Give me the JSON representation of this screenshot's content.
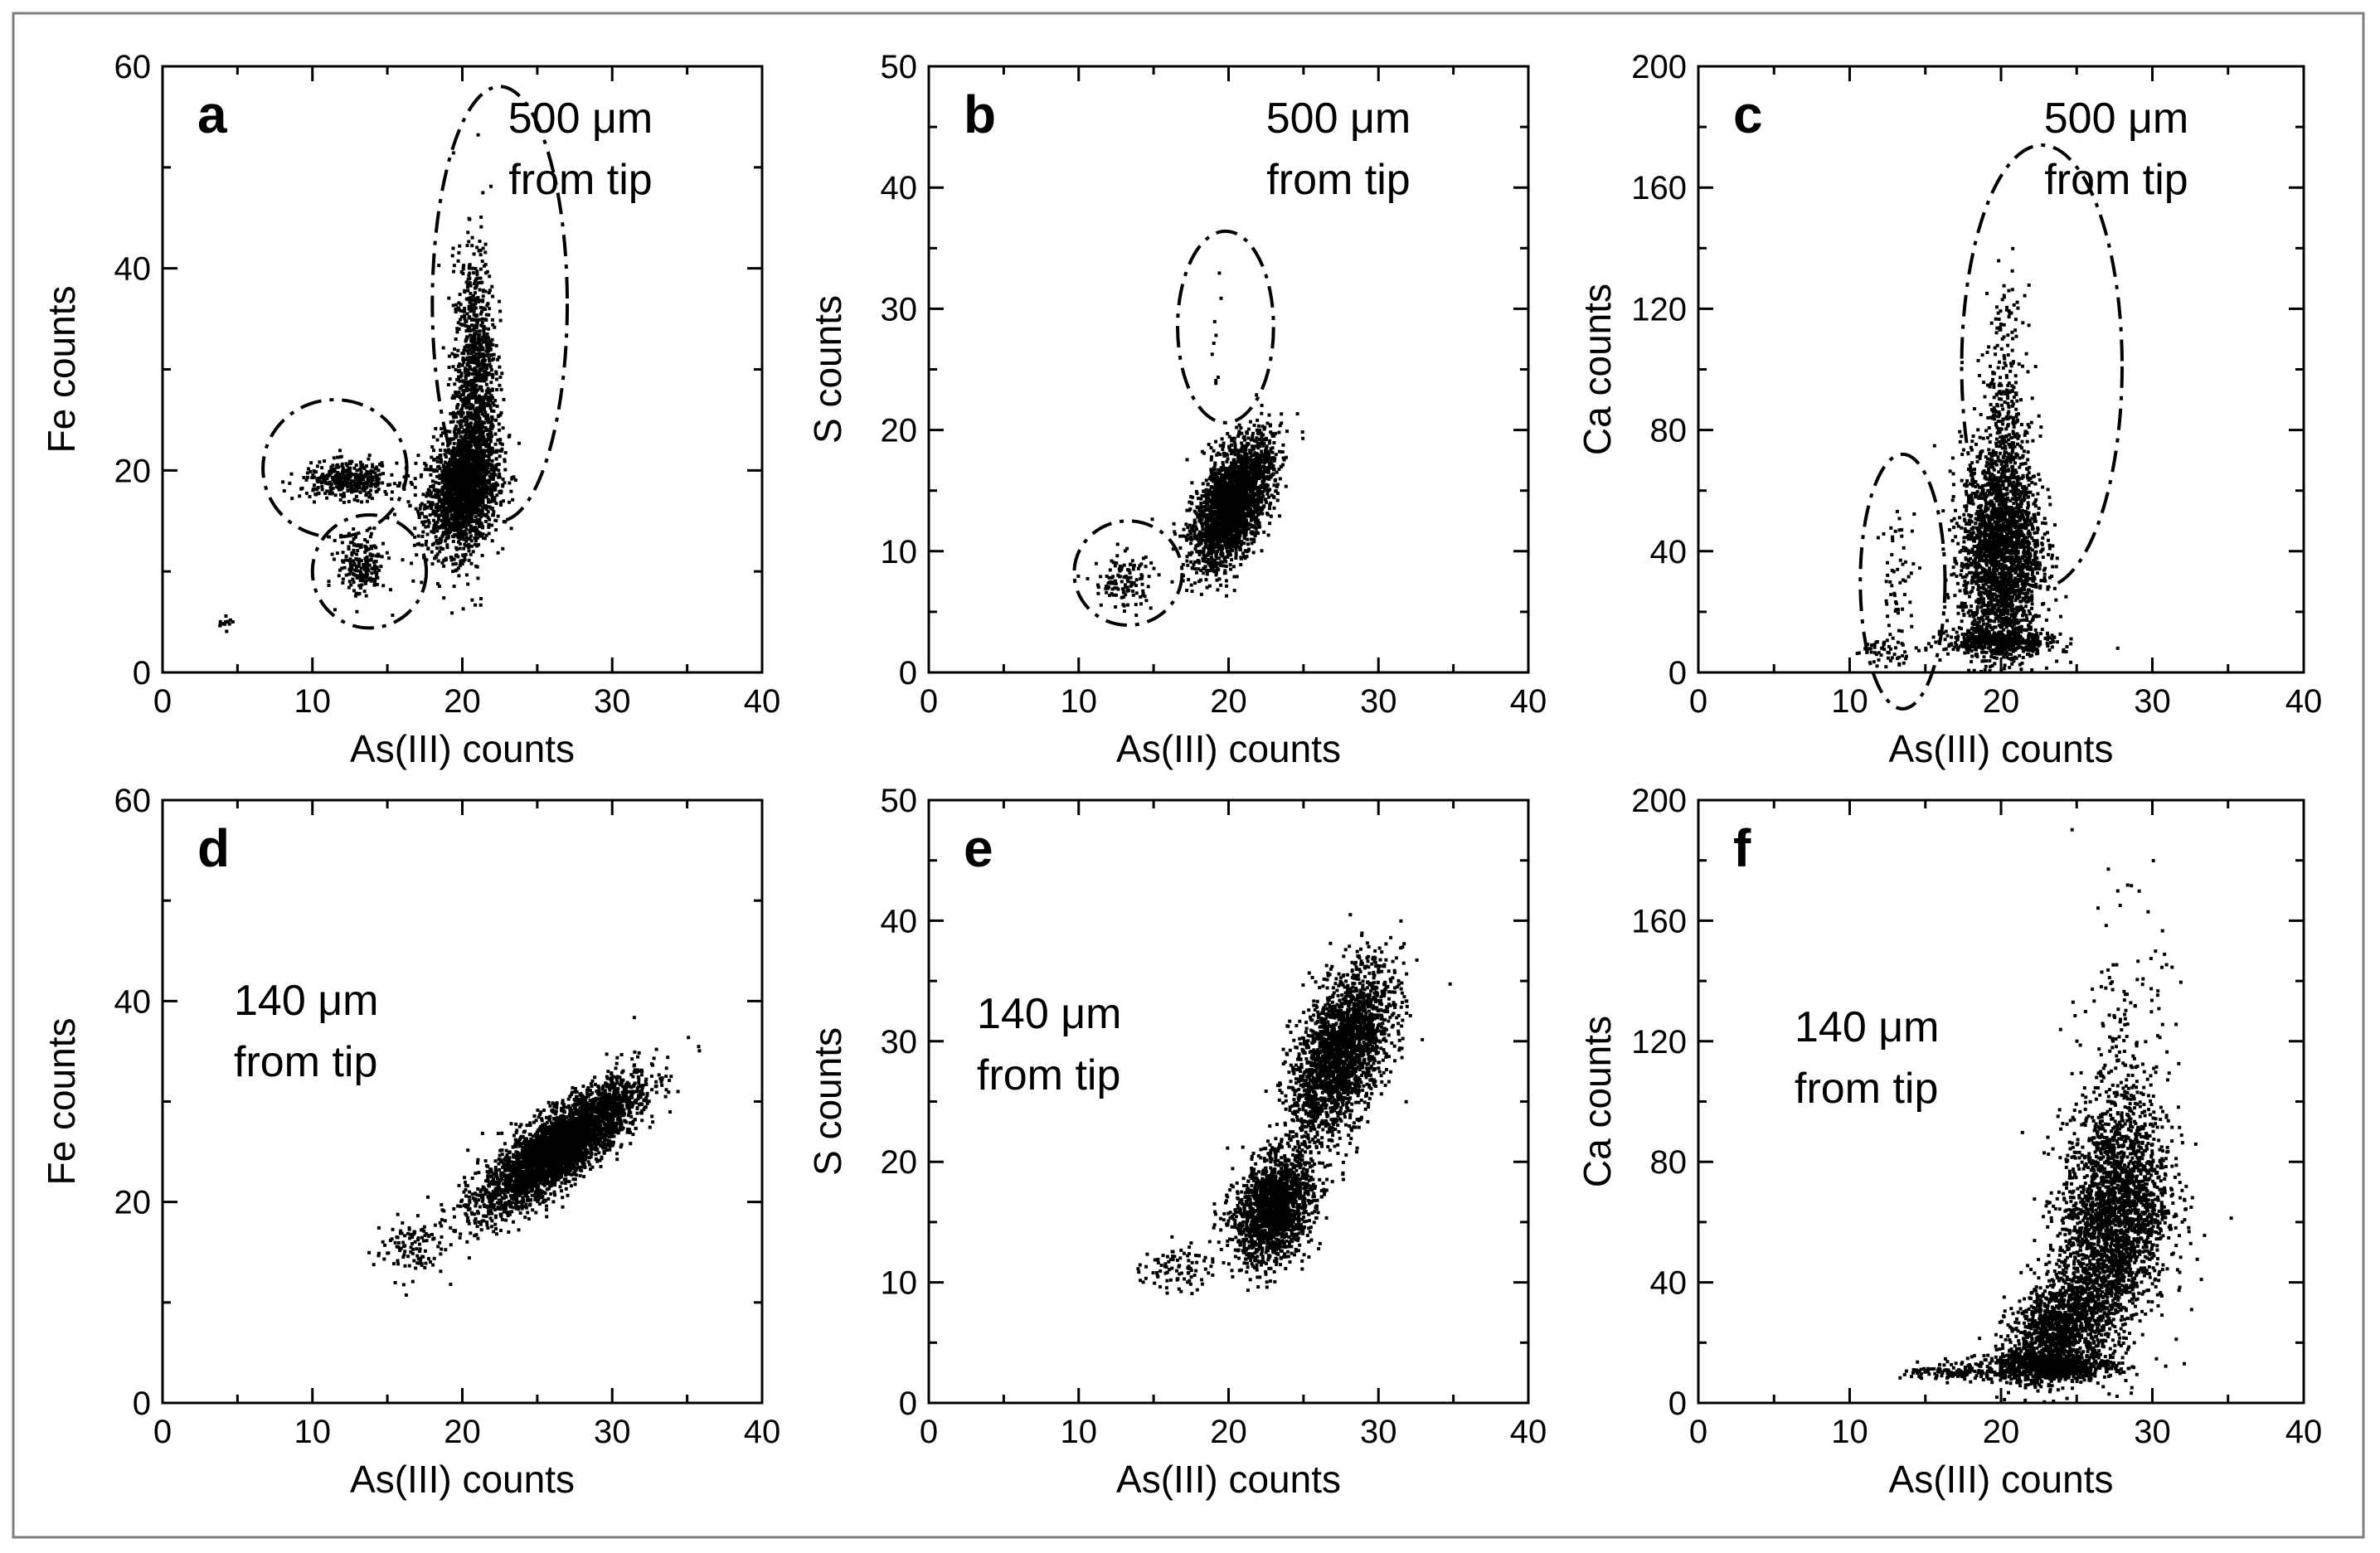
{
  "chart_data": [
    {
      "type": "scatter",
      "letter": "a",
      "annotation": [
        "500 μm",
        "from tip"
      ],
      "xlabel": "As(III) counts",
      "ylabel": "Fe counts",
      "xlim": [
        0,
        40
      ],
      "ylim": [
        0,
        60
      ],
      "xticks": [
        "0",
        "10",
        "20",
        "30",
        "40"
      ],
      "yticks": [
        "0",
        "20",
        "40",
        "60"
      ],
      "clusters": [
        {
          "cx": 20,
          "cy": 18,
          "sx": 1.2,
          "sy": 3.0,
          "rho": 0.25,
          "n": 1700
        },
        {
          "cx": 20.8,
          "cy": 28,
          "sx": 0.7,
          "sy": 7.0,
          "rho": 0.1,
          "n": 1100
        },
        {
          "cx": 12.5,
          "cy": 19,
          "sx": 1.6,
          "sy": 0.9,
          "rho": 0,
          "n": 380
        },
        {
          "cx": 13.3,
          "cy": 10.5,
          "sx": 0.8,
          "sy": 1.6,
          "rho": 0,
          "n": 200
        },
        {
          "cx": 4.2,
          "cy": 4.8,
          "sx": 0.25,
          "sy": 0.3,
          "rho": 0,
          "n": 14
        }
      ],
      "ellipses": [
        {
          "cx": 22.5,
          "cy": 36.5,
          "rx": 4.5,
          "ry": 21.5
        },
        {
          "cx": 11.5,
          "cy": 20.2,
          "rx": 4.8,
          "ry": 6.8
        },
        {
          "cx": 13.8,
          "cy": 10,
          "rx": 3.8,
          "ry": 5.6
        }
      ]
    },
    {
      "type": "scatter",
      "letter": "b",
      "annotation": [
        "500 μm",
        "from tip"
      ],
      "xlabel": "As(III) counts",
      "ylabel": "S counts",
      "xlim": [
        0,
        40
      ],
      "ylim": [
        0,
        50
      ],
      "xticks": [
        "0",
        "10",
        "20",
        "30",
        "40"
      ],
      "yticks": [
        "0",
        "10",
        "20",
        "30",
        "40",
        "50"
      ],
      "clusters": [
        {
          "cx": 20.3,
          "cy": 14,
          "sx": 1.3,
          "sy": 2.6,
          "rho": 0.55,
          "n": 2400
        },
        {
          "cx": 13,
          "cy": 7.5,
          "sx": 1.0,
          "sy": 1.2,
          "rho": 0,
          "n": 120
        },
        {
          "cx": 19.2,
          "cy": 28,
          "sx": 0.25,
          "sy": 4.0,
          "rho": 0,
          "n": 10
        }
      ],
      "ellipses": [
        {
          "cx": 19.8,
          "cy": 28.5,
          "rx": 3.2,
          "ry": 7.9
        },
        {
          "cx": 13.3,
          "cy": 8.2,
          "rx": 3.6,
          "ry": 4.3
        }
      ]
    },
    {
      "type": "scatter",
      "letter": "c",
      "annotation": [
        "500 μm",
        "from tip"
      ],
      "xlabel": "As(III) counts",
      "ylabel": "Ca counts",
      "xlim": [
        0,
        40
      ],
      "ylim": [
        0,
        200
      ],
      "xticks": [
        "0",
        "10",
        "20",
        "30",
        "40"
      ],
      "yticks": [
        "0",
        "40",
        "80",
        "120",
        "160",
        "200"
      ],
      "clusters": [
        {
          "cx": 20,
          "cy": 40,
          "sx": 1.3,
          "sy": 18,
          "rho": 0.05,
          "n": 2300
        },
        {
          "cx": 20.2,
          "cy": 90,
          "sx": 0.7,
          "sy": 18,
          "rho": 0,
          "n": 250
        },
        {
          "cx": 20,
          "cy": 10,
          "sx": 1.8,
          "sy": 2.2,
          "rho": 0,
          "n": 450
        },
        {
          "cx": 13.2,
          "cy": 30,
          "sx": 0.6,
          "sy": 12,
          "rho": 0,
          "n": 60
        },
        {
          "cx": 12.5,
          "cy": 7,
          "sx": 1.1,
          "sy": 1.8,
          "rho": 0,
          "n": 50
        }
      ],
      "ellipses": [
        {
          "cx": 22.7,
          "cy": 101,
          "rx": 5.3,
          "ry": 73
        },
        {
          "cx": 13.5,
          "cy": 30,
          "rx": 2.8,
          "ry": 42
        }
      ]
    },
    {
      "type": "scatter",
      "letter": "d",
      "annotation": [
        "140 μm",
        "from tip"
      ],
      "xlabel": "As(III) counts",
      "ylabel": "Fe counts",
      "xlim": [
        0,
        40
      ],
      "ylim": [
        0,
        60
      ],
      "xticks": [
        "0",
        "10",
        "20",
        "30",
        "40"
      ],
      "yticks": [
        "0",
        "20",
        "40",
        "60"
      ],
      "clusters": [
        {
          "cx": 26.5,
          "cy": 25.5,
          "sx": 2.6,
          "sy": 3.2,
          "rho": 0.82,
          "n": 3600
        },
        {
          "cx": 16.5,
          "cy": 15.5,
          "sx": 1.2,
          "sy": 1.6,
          "rho": 0.1,
          "n": 110
        }
      ],
      "ellipses": []
    },
    {
      "type": "scatter",
      "letter": "e",
      "annotation": [
        "140 μm",
        "from tip"
      ],
      "xlabel": "As(III) counts",
      "ylabel": "S counts",
      "xlim": [
        0,
        40
      ],
      "ylim": [
        0,
        50
      ],
      "xticks": [
        "0",
        "10",
        "20",
        "30",
        "40"
      ],
      "yticks": [
        "0",
        "10",
        "20",
        "30",
        "40",
        "50"
      ],
      "clusters": [
        {
          "cx": 27.5,
          "cy": 29,
          "sx": 1.7,
          "sy": 3.6,
          "rho": 0.55,
          "n": 2200
        },
        {
          "cx": 23,
          "cy": 16,
          "sx": 1.3,
          "sy": 2.2,
          "rho": 0.3,
          "n": 1700
        },
        {
          "cx": 16.5,
          "cy": 11.2,
          "sx": 1.1,
          "sy": 1.0,
          "rho": 0,
          "n": 90
        }
      ],
      "ellipses": []
    },
    {
      "type": "scatter",
      "letter": "f",
      "annotation": [
        "140 μm",
        "from tip"
      ],
      "xlabel": "As(III) counts",
      "ylabel": "Ca counts",
      "xlim": [
        0,
        40
      ],
      "ylim": [
        0,
        200
      ],
      "xticks": [
        "0",
        "10",
        "20",
        "30",
        "40"
      ],
      "yticks": [
        "0",
        "40",
        "80",
        "120",
        "160",
        "200"
      ],
      "clusters": [
        {
          "cx": 27.5,
          "cy": 62,
          "sx": 1.8,
          "sy": 20,
          "rho": 0.2,
          "n": 2400
        },
        {
          "cx": 24,
          "cy": 25,
          "sx": 1.8,
          "sy": 9,
          "rho": 0.4,
          "n": 1300
        },
        {
          "cx": 23,
          "cy": 12,
          "sx": 2.2,
          "sy": 2.2,
          "rho": 0,
          "n": 800
        },
        {
          "cx": 17,
          "cy": 10,
          "sx": 1.6,
          "sy": 1.2,
          "rho": 0,
          "n": 110
        },
        {
          "cx": 28,
          "cy": 120,
          "sx": 1.4,
          "sy": 22,
          "rho": 0,
          "n": 140
        }
      ],
      "ellipses": []
    }
  ]
}
